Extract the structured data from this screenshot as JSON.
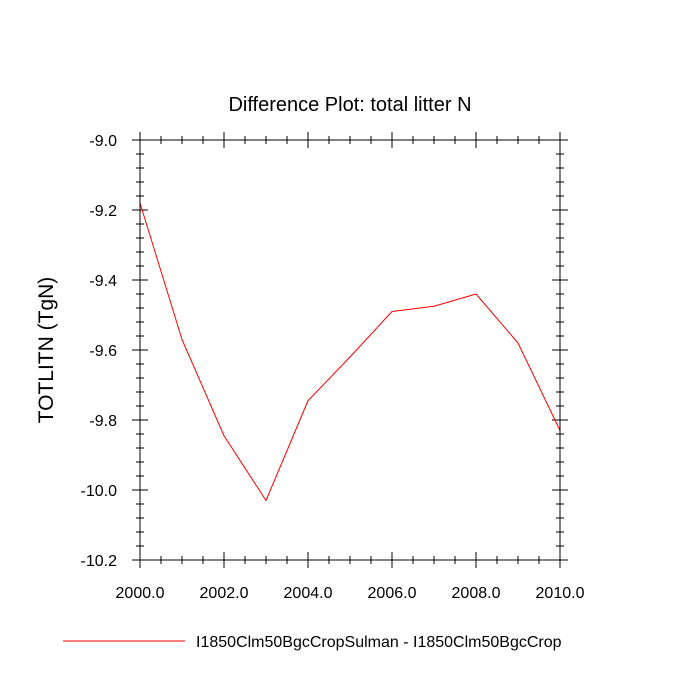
{
  "chart_data": {
    "type": "line",
    "title": "Difference Plot: total litter N",
    "xlabel": "",
    "ylabel": "TOTLITN  (TgN)",
    "xlim": [
      2000,
      2010
    ],
    "ylim": [
      -10.2,
      -9.0
    ],
    "x_ticks": [
      2000,
      2002,
      2004,
      2006,
      2008,
      2010
    ],
    "x_tick_labels": [
      "2000.0",
      "2002.0",
      "2004.0",
      "2006.0",
      "2008.0",
      "2010.0"
    ],
    "y_ticks": [
      -9.0,
      -9.2,
      -9.4,
      -9.6,
      -9.8,
      -10.0,
      -10.2
    ],
    "y_tick_labels": [
      "-9.0",
      "-9.2",
      "-9.4",
      "-9.6",
      "-9.8",
      "-10.0",
      "-10.2"
    ],
    "grid": false,
    "legend_position": "bottom",
    "series": [
      {
        "name": "I1850Clm50BgcCropSulman - I1850Clm50BgcCrop",
        "color": "#ff0000",
        "x": [
          2000,
          2001,
          2002,
          2003,
          2004,
          2005,
          2006,
          2007,
          2008,
          2009,
          2010
        ],
        "y": [
          -9.18,
          -9.57,
          -9.845,
          -10.03,
          -9.745,
          -9.62,
          -9.49,
          -9.475,
          -9.44,
          -9.58,
          -9.83
        ]
      }
    ]
  }
}
